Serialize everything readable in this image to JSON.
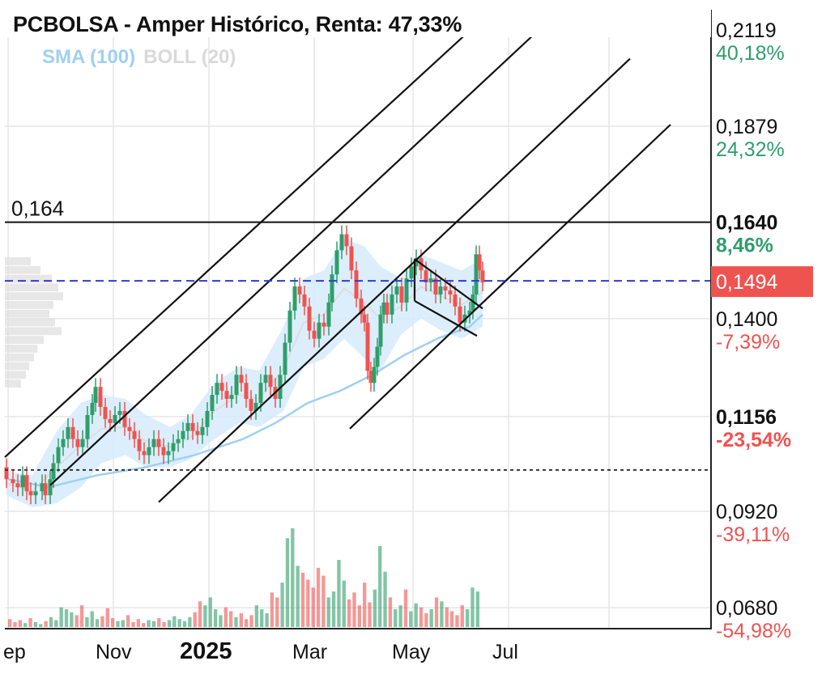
{
  "title": "PCBOLSA - Amper Histórico, Renta: 47,33%",
  "legend": {
    "sma": "SMA (100)",
    "boll": "BOLL (20)"
  },
  "colors": {
    "up": "#2e9e6b",
    "down": "#ef5350",
    "sma": "#9fd0f3",
    "boll_fill": "#d6ebfb",
    "current_price": "#ef5350",
    "dashed_line": "#2f3bd6",
    "grid": "#e6e6e6"
  },
  "chart_data": {
    "type": "candlestick",
    "x_ticks": [
      "ep",
      "Nov",
      "2025",
      "Mar",
      "May",
      "Jul"
    ],
    "y_levels": [
      {
        "price": "0,2119",
        "pct": "40,18%",
        "sign": "up",
        "bold": false
      },
      {
        "price": "0,1879",
        "pct": "24,32%",
        "sign": "up",
        "bold": false
      },
      {
        "price": "0,1640",
        "pct": "8,46%",
        "sign": "up",
        "bold": true
      },
      {
        "price": "0,1400",
        "pct": "-7,39%",
        "sign": "down",
        "bold": false
      },
      {
        "price": "0,1156",
        "pct": "-23,54%",
        "sign": "down",
        "bold": true
      },
      {
        "price": "0,0920",
        "pct": "-39,11%",
        "sign": "down",
        "bold": false
      },
      {
        "price": "0,0680",
        "pct": "-54,98%",
        "sign": "down",
        "bold": false
      }
    ],
    "current_price": "0,1494",
    "resistance": {
      "value": 0.164,
      "label": "0,164"
    },
    "reference_level": 0.1023,
    "ylim": [
      0.0628,
      0.2165
    ],
    "close_series": [
      [
        0,
        0.103
      ],
      [
        8,
        0.1
      ],
      [
        16,
        0.099
      ],
      [
        22,
        0.098
      ],
      [
        28,
        0.101
      ],
      [
        33,
        0.097
      ],
      [
        38,
        0.096
      ],
      [
        44,
        0.097
      ],
      [
        52,
        0.099
      ],
      [
        56,
        0.096
      ],
      [
        62,
        0.1
      ],
      [
        66,
        0.104
      ],
      [
        72,
        0.108
      ],
      [
        78,
        0.11
      ],
      [
        84,
        0.113
      ],
      [
        90,
        0.11
      ],
      [
        96,
        0.108
      ],
      [
        102,
        0.11
      ],
      [
        108,
        0.116
      ],
      [
        114,
        0.119
      ],
      [
        118,
        0.123
      ],
      [
        124,
        0.118
      ],
      [
        130,
        0.115
      ],
      [
        136,
        0.114
      ],
      [
        142,
        0.116
      ],
      [
        148,
        0.117
      ],
      [
        154,
        0.113
      ],
      [
        160,
        0.112
      ],
      [
        166,
        0.11
      ],
      [
        172,
        0.107
      ],
      [
        178,
        0.106
      ],
      [
        184,
        0.108
      ],
      [
        190,
        0.11
      ],
      [
        196,
        0.108
      ],
      [
        202,
        0.106
      ],
      [
        208,
        0.107
      ],
      [
        214,
        0.109
      ],
      [
        220,
        0.11
      ],
      [
        226,
        0.112
      ],
      [
        232,
        0.114
      ],
      [
        238,
        0.112
      ],
      [
        244,
        0.111
      ],
      [
        250,
        0.113
      ],
      [
        256,
        0.117
      ],
      [
        262,
        0.121
      ],
      [
        268,
        0.124
      ],
      [
        274,
        0.122
      ],
      [
        280,
        0.12
      ],
      [
        286,
        0.121
      ],
      [
        292,
        0.126
      ],
      [
        298,
        0.124
      ],
      [
        304,
        0.12
      ],
      [
        310,
        0.117
      ],
      [
        316,
        0.119
      ],
      [
        322,
        0.124
      ],
      [
        328,
        0.126
      ],
      [
        334,
        0.123
      ],
      [
        340,
        0.12
      ],
      [
        346,
        0.126
      ],
      [
        352,
        0.134
      ],
      [
        358,
        0.142
      ],
      [
        364,
        0.148
      ],
      [
        370,
        0.146
      ],
      [
        376,
        0.143
      ],
      [
        382,
        0.137
      ],
      [
        388,
        0.135
      ],
      [
        394,
        0.139
      ],
      [
        400,
        0.138
      ],
      [
        406,
        0.144
      ],
      [
        410,
        0.151
      ],
      [
        416,
        0.157
      ],
      [
        422,
        0.161
      ],
      [
        428,
        0.158
      ],
      [
        434,
        0.152
      ],
      [
        440,
        0.145
      ],
      [
        446,
        0.141
      ],
      [
        450,
        0.139
      ],
      [
        454,
        0.127
      ],
      [
        458,
        0.124
      ],
      [
        462,
        0.128
      ],
      [
        466,
        0.133
      ],
      [
        470,
        0.141
      ],
      [
        474,
        0.144
      ],
      [
        478,
        0.141
      ],
      [
        484,
        0.146
      ],
      [
        490,
        0.148
      ],
      [
        496,
        0.144
      ],
      [
        502,
        0.15
      ],
      [
        508,
        0.153
      ],
      [
        514,
        0.155
      ],
      [
        520,
        0.152
      ],
      [
        526,
        0.149
      ],
      [
        532,
        0.15
      ],
      [
        538,
        0.146
      ],
      [
        544,
        0.148
      ],
      [
        550,
        0.147
      ],
      [
        556,
        0.146
      ],
      [
        562,
        0.143
      ],
      [
        568,
        0.139
      ],
      [
        574,
        0.141
      ],
      [
        580,
        0.142
      ],
      [
        584,
        0.146
      ],
      [
        588,
        0.156
      ],
      [
        592,
        0.152
      ],
      [
        596,
        0.149
      ]
    ],
    "sma_series": [
      [
        10,
        0.1
      ],
      [
        60,
        0.098
      ],
      [
        120,
        0.101
      ],
      [
        180,
        0.103
      ],
      [
        240,
        0.106
      ],
      [
        300,
        0.11
      ],
      [
        340,
        0.114
      ],
      [
        380,
        0.119
      ],
      [
        420,
        0.122
      ],
      [
        460,
        0.126
      ],
      [
        500,
        0.131
      ],
      [
        540,
        0.135
      ],
      [
        580,
        0.138
      ],
      [
        596,
        0.141
      ]
    ],
    "boll_upper": [
      [
        8,
        0.102
      ],
      [
        40,
        0.101
      ],
      [
        70,
        0.112
      ],
      [
        100,
        0.119
      ],
      [
        125,
        0.121
      ],
      [
        155,
        0.12
      ],
      [
        180,
        0.116
      ],
      [
        210,
        0.113
      ],
      [
        235,
        0.116
      ],
      [
        265,
        0.124
      ],
      [
        295,
        0.128
      ],
      [
        320,
        0.127
      ],
      [
        350,
        0.138
      ],
      [
        375,
        0.15
      ],
      [
        400,
        0.152
      ],
      [
        425,
        0.16
      ],
      [
        450,
        0.158
      ],
      [
        470,
        0.153
      ],
      [
        495,
        0.15
      ],
      [
        520,
        0.156
      ],
      [
        545,
        0.154
      ],
      [
        570,
        0.152
      ],
      [
        596,
        0.155
      ]
    ],
    "boll_lower": [
      [
        8,
        0.096
      ],
      [
        40,
        0.093
      ],
      [
        70,
        0.094
      ],
      [
        100,
        0.098
      ],
      [
        125,
        0.104
      ],
      [
        155,
        0.106
      ],
      [
        180,
        0.103
      ],
      [
        210,
        0.103
      ],
      [
        235,
        0.105
      ],
      [
        265,
        0.11
      ],
      [
        295,
        0.114
      ],
      [
        320,
        0.113
      ],
      [
        350,
        0.117
      ],
      [
        375,
        0.128
      ],
      [
        400,
        0.13
      ],
      [
        425,
        0.135
      ],
      [
        450,
        0.13
      ],
      [
        470,
        0.127
      ],
      [
        495,
        0.136
      ],
      [
        520,
        0.14
      ],
      [
        545,
        0.137
      ],
      [
        570,
        0.135
      ],
      [
        596,
        0.138
      ]
    ],
    "channel_lines": [
      [
        [
          6,
          0.1055
        ],
        [
          606,
          0.2165
        ]
      ],
      [
        [
          62,
          0.0985
        ],
        [
          690,
          0.2165
        ]
      ],
      [
        [
          196,
          0.0943
        ],
        [
          778,
          0.2047
        ]
      ],
      [
        [
          432,
          0.1126
        ],
        [
          828,
          0.1883
        ]
      ]
    ],
    "wedge_lines": [
      [
        [
          512,
          0.1548
        ],
        [
          596,
          0.1425
        ]
      ],
      [
        [
          512,
          0.1444
        ],
        [
          589,
          0.1357
        ]
      ]
    ],
    "volume_rel": [
      0.08,
      0.05,
      0.07,
      0.04,
      0.09,
      0.05,
      0.03,
      0.06,
      0.1,
      0.07,
      0.2,
      0.18,
      0.15,
      0.12,
      0.22,
      0.1,
      0.16,
      0.08,
      0.11,
      0.19,
      0.09,
      0.06,
      0.07,
      0.12,
      0.05,
      0.08,
      0.04,
      0.07,
      0.06,
      0.09,
      0.05,
      0.07,
      0.11,
      0.08,
      0.06,
      0.1,
      0.15,
      0.26,
      0.22,
      0.3,
      0.18,
      0.12,
      0.2,
      0.16,
      0.1,
      0.14,
      0.08,
      0.12,
      0.22,
      0.18,
      0.14,
      0.35,
      0.3,
      0.45,
      0.9,
      1.0,
      0.62,
      0.55,
      0.48,
      0.4,
      0.6,
      0.52,
      0.3,
      0.36,
      0.68,
      0.47,
      0.28,
      0.35,
      0.22,
      0.45,
      0.25,
      0.38,
      0.82,
      0.56,
      0.3,
      0.18,
      0.22,
      0.38,
      0.16,
      0.24,
      0.2,
      0.14,
      0.18,
      0.3,
      0.26,
      0.2,
      0.16,
      0.12,
      0.22,
      0.18,
      0.4,
      0.36
    ]
  }
}
